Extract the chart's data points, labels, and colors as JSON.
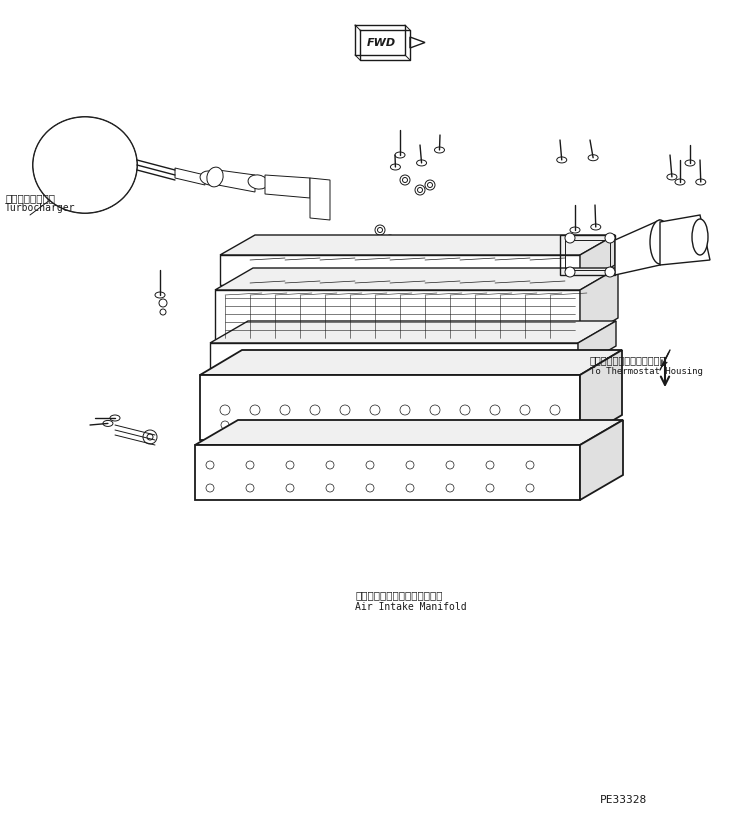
{
  "bg_color": "#ffffff",
  "line_color": "#000000",
  "fig_width": 7.55,
  "fig_height": 8.13,
  "dpi": 100,
  "labels": {
    "turbocharger_jp": "ターボチャージャ",
    "turbocharger_en": "Turbocharger",
    "thermostat_jp": "サーモスタットハウジングへ",
    "thermostat_en": "To Thermostat Housing",
    "manifold_jp": "エアーインテークマニホールド",
    "manifold_en": "Air Intake Manifold",
    "part_number": "PE33328",
    "fwd": "FWD"
  },
  "colors": {
    "drawing": "#1a1a1a",
    "light_gray": "#888888",
    "mid_gray": "#555555"
  }
}
